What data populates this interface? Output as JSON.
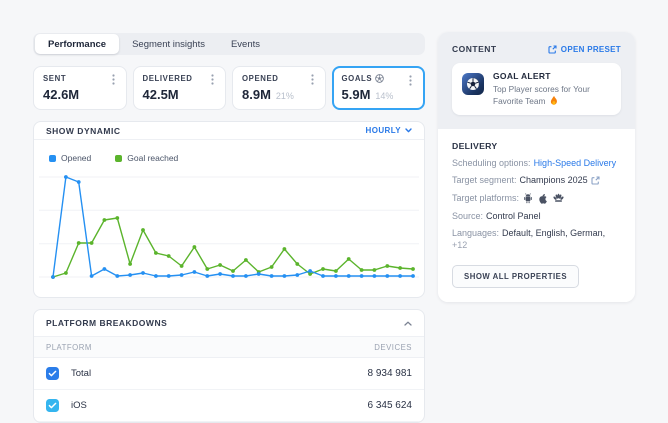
{
  "colors": {
    "accent_blue": "#2979E8",
    "line_blue": "#2590F2",
    "line_green": "#5BB42C",
    "selected_card_border": "#35A4F4",
    "checkbox_total": "#2B7DE9",
    "checkbox_ios": "#35B5EF"
  },
  "tabs": {
    "items": [
      {
        "label": "Performance",
        "active": true
      },
      {
        "label": "Segment insights",
        "active": false
      },
      {
        "label": "Events",
        "active": false
      }
    ]
  },
  "metrics": [
    {
      "label": "SENT",
      "value": "42.6M",
      "percent": ""
    },
    {
      "label": "DELIVERED",
      "value": "42.5M",
      "percent": ""
    },
    {
      "label": "OPENED",
      "value": "8.9M",
      "percent": "21%"
    },
    {
      "label": "GOALS",
      "value": "5.9M",
      "percent": "14%",
      "icon": "soccer-ball",
      "selected": true
    }
  ],
  "dynamic": {
    "title": "SHOW DYNAMIC",
    "interval": "HOURLY",
    "legend": [
      {
        "label": "Opened",
        "color": "#2590F2"
      },
      {
        "label": "Goal reached",
        "color": "#5BB42C"
      }
    ]
  },
  "chart_data": {
    "type": "line",
    "title": "SHOW DYNAMIC",
    "interval": "HOURLY",
    "xlabel": "",
    "ylabel": "",
    "axis_labels_visible": false,
    "grid": true,
    "ylim": [
      0,
      100
    ],
    "note": "values are relative (percent of peak); axes are unlabeled in UI",
    "x": [
      0,
      1,
      2,
      3,
      4,
      5,
      6,
      7,
      8,
      9,
      10,
      11,
      12,
      13,
      14,
      15,
      16,
      17,
      18,
      19,
      20,
      21,
      22,
      23,
      24,
      25,
      26,
      27,
      28
    ],
    "series": [
      {
        "name": "Opened",
        "color": "#2590F2",
        "values": [
          0,
          100,
          95,
          1,
          8,
          1,
          2,
          4,
          1,
          1,
          2,
          5,
          1,
          3,
          1,
          1,
          3,
          1,
          1,
          2,
          6,
          1,
          1,
          1,
          1,
          1,
          1,
          1,
          1
        ]
      },
      {
        "name": "Goal reached",
        "color": "#5BB42C",
        "values": [
          0,
          4,
          34,
          34,
          57,
          59,
          13,
          47,
          24,
          21,
          11,
          30,
          8,
          12,
          6,
          17,
          5,
          10,
          28,
          13,
          3,
          8,
          6,
          18,
          7,
          7,
          11,
          9,
          8
        ]
      }
    ],
    "legend_position": "top-left"
  },
  "platform_breakdowns": {
    "title": "PLATFORM BREAKDOWNS",
    "columns": [
      "PLATFORM",
      "DEVICES"
    ],
    "rows": [
      {
        "name": "Total",
        "devices": "8 934 981",
        "checked": true,
        "checkbox_color": "#2B7DE9"
      },
      {
        "name": "iOS",
        "devices": "6 345 624",
        "checked": true,
        "checkbox_color": "#35B5EF"
      }
    ]
  },
  "content_panel": {
    "title": "CONTENT",
    "open_preset_label": "OPEN PRESET",
    "alert": {
      "title": "GOAL ALERT",
      "text": "Top Player scores for Your Favorite Team",
      "icon": "soccer-ball-app-icon",
      "emoji": "flame"
    }
  },
  "delivery": {
    "title": "DELIVERY",
    "scheduling_label": "Scheduling options:",
    "scheduling_value": "High-Speed Delivery",
    "segment_label": "Target segment:",
    "segment_value": "Champions 2025",
    "platforms_label": "Target platforms:",
    "platforms": [
      "android",
      "apple",
      "huawei"
    ],
    "source_label": "Source:",
    "source_value": "Control Panel",
    "languages_label": "Languages:",
    "languages_value": "Default, English, German,",
    "languages_more": "+12",
    "show_all_label": "SHOW ALL PROPERTIES"
  }
}
